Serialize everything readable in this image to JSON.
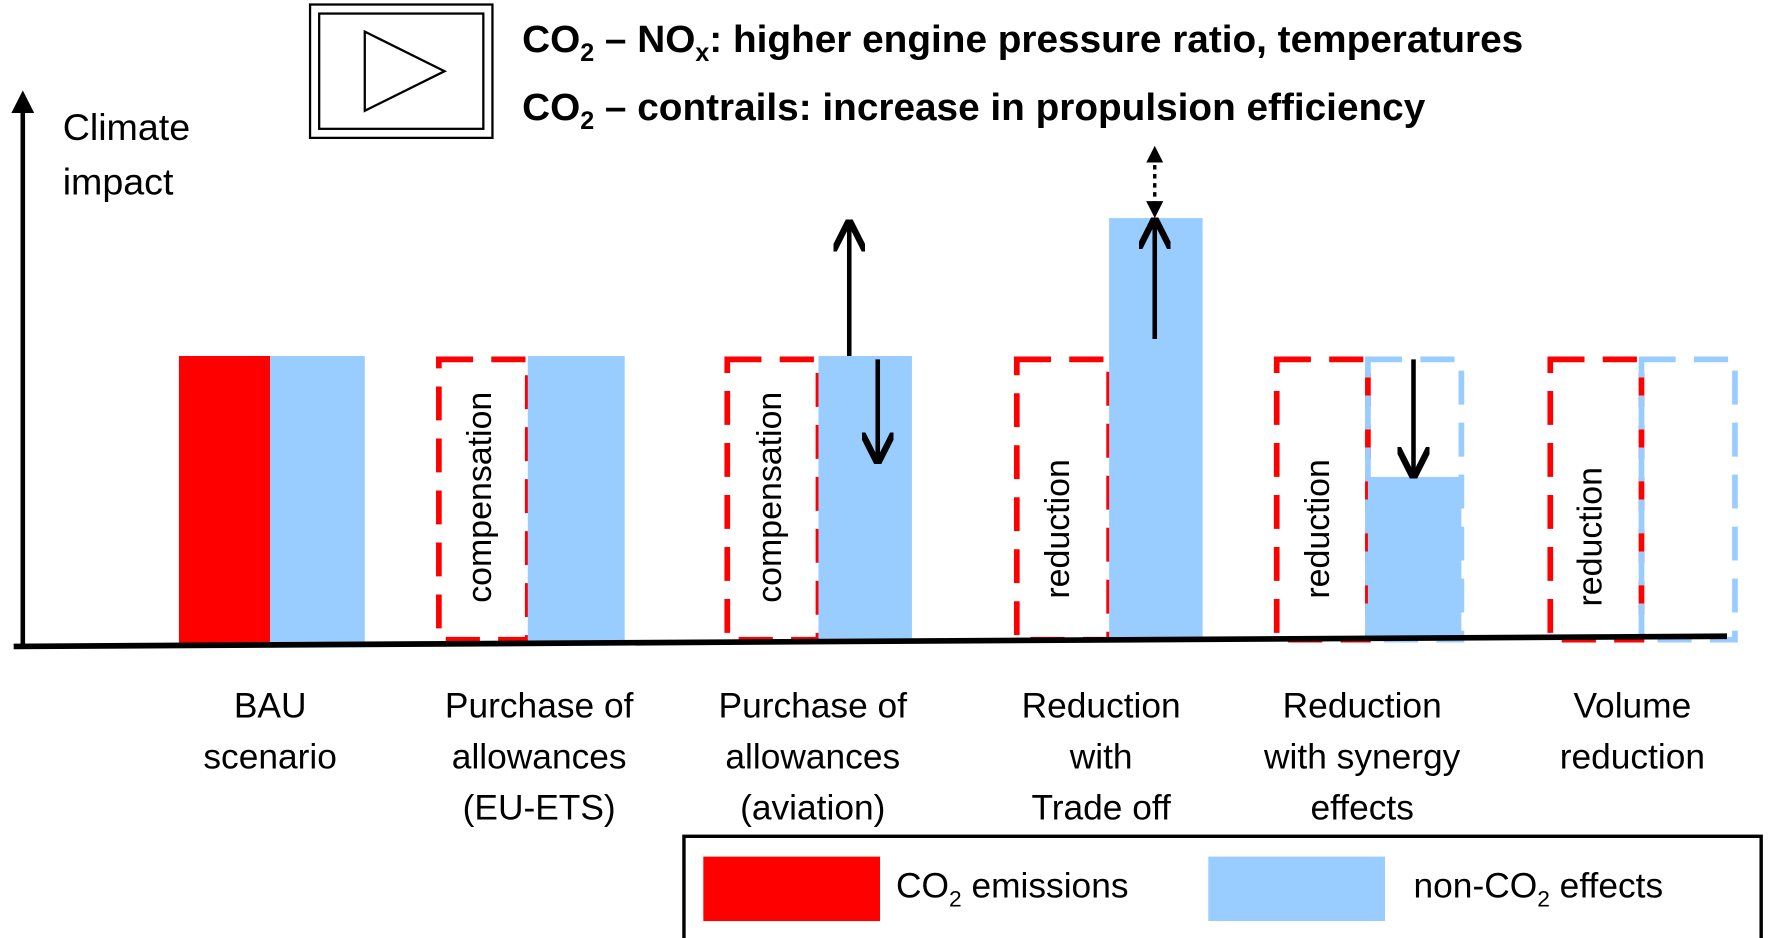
{
  "header": {
    "lines": [
      [
        "CO",
        "2",
        " – NO",
        "x",
        ": higher engine pressure ratio, temperatures"
      ],
      [
        "CO",
        "2",
        " – contrails: increase in propulsion efficiency"
      ]
    ]
  },
  "axis_label": [
    "Climate",
    "impact"
  ],
  "categories": [
    [
      "BAU",
      "scenario"
    ],
    [
      "Purchase of",
      "allowances",
      "(EU-ETS)"
    ],
    [
      "Purchase of",
      "allowances",
      "(aviation)"
    ],
    [
      "Reduction",
      "with",
      "Trade off"
    ],
    [
      "Reduction",
      "with synergy",
      "effects"
    ],
    [
      "Volume",
      "reduction"
    ]
  ],
  "bar_labels": [
    "compensation",
    "compensation",
    "reduction",
    "reduction",
    "reduction"
  ],
  "legend": [
    [
      "CO",
      "2",
      " emissions"
    ],
    [
      "non-CO",
      "2",
      " effects"
    ]
  ]
}
